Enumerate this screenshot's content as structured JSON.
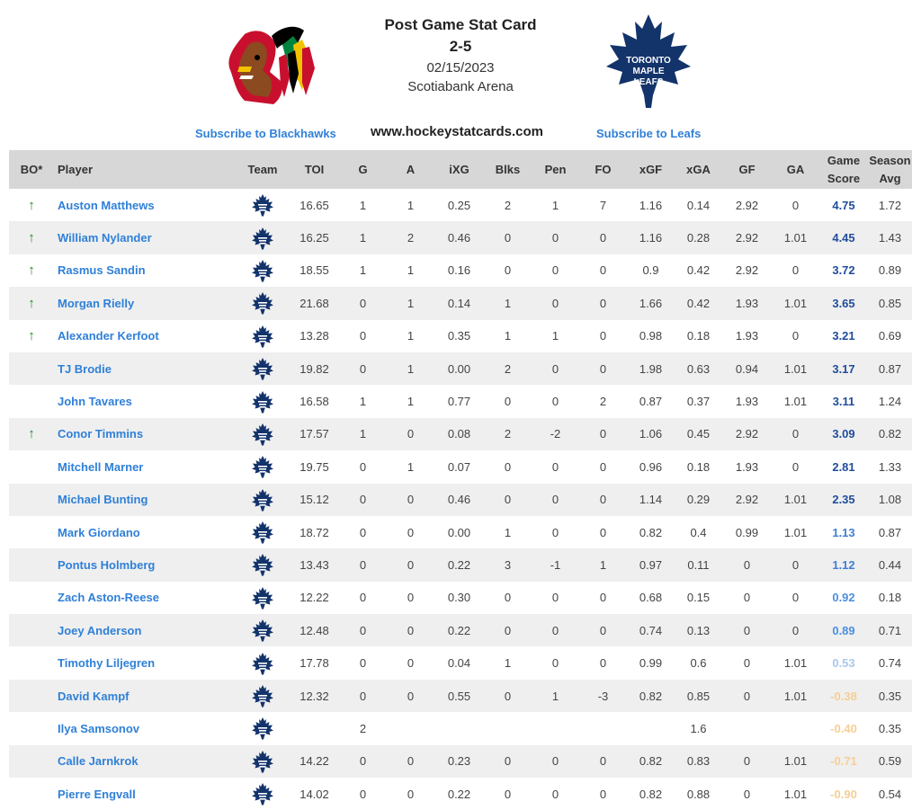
{
  "header": {
    "title": "Post Game Stat Card",
    "score": "2-5",
    "date": "02/15/2023",
    "arena": "Scotiabank Arena",
    "site": "www.hockeystatcards.com",
    "subscribe_home": "Subscribe to Blackhawks",
    "subscribe_away": "Subscribe to Leafs",
    "leafs_logo_text": [
      "TORONTO",
      "MAPLE",
      "LEAFS"
    ]
  },
  "columns": [
    "BO*",
    "Player",
    "Team",
    "TOI",
    "G",
    "A",
    "iXG",
    "Blks",
    "Pen",
    "FO",
    "xGF",
    "xGA",
    "GF",
    "GA",
    "Game Score",
    "Season Avg"
  ],
  "colors": {
    "header_bg": "#d7d7d7",
    "row_alt": "#efefef",
    "link": "#2f80d8",
    "arrow": "#1e8a1e",
    "leafs_blue": "#13336b"
  },
  "rows": [
    {
      "bo": "↑",
      "player": "Auston Matthews",
      "toi": "16.65",
      "g": "1",
      "a": "1",
      "ixg": "0.25",
      "blks": "2",
      "pen": "1",
      "fo": "7",
      "xgf": "1.16",
      "xga": "0.14",
      "gf": "2.92",
      "ga": "0",
      "gs": "4.75",
      "gs_color": "#1f4d9c",
      "avg": "1.72"
    },
    {
      "bo": "↑",
      "player": "William Nylander",
      "toi": "16.25",
      "g": "1",
      "a": "2",
      "ixg": "0.46",
      "blks": "0",
      "pen": "0",
      "fo": "0",
      "xgf": "1.16",
      "xga": "0.28",
      "gf": "2.92",
      "ga": "1.01",
      "gs": "4.45",
      "gs_color": "#1f4d9c",
      "avg": "1.43"
    },
    {
      "bo": "↑",
      "player": "Rasmus Sandin",
      "toi": "18.55",
      "g": "1",
      "a": "1",
      "ixg": "0.16",
      "blks": "0",
      "pen": "0",
      "fo": "0",
      "xgf": "0.9",
      "xga": "0.42",
      "gf": "2.92",
      "ga": "0",
      "gs": "3.72",
      "gs_color": "#1f4d9c",
      "avg": "0.89"
    },
    {
      "bo": "↑",
      "player": "Morgan Rielly",
      "toi": "21.68",
      "g": "0",
      "a": "1",
      "ixg": "0.14",
      "blks": "1",
      "pen": "0",
      "fo": "0",
      "xgf": "1.66",
      "xga": "0.42",
      "gf": "1.93",
      "ga": "1.01",
      "gs": "3.65",
      "gs_color": "#1f4d9c",
      "avg": "0.85"
    },
    {
      "bo": "↑",
      "player": "Alexander Kerfoot",
      "toi": "13.28",
      "g": "0",
      "a": "1",
      "ixg": "0.35",
      "blks": "1",
      "pen": "1",
      "fo": "0",
      "xgf": "0.98",
      "xga": "0.18",
      "gf": "1.93",
      "ga": "0",
      "gs": "3.21",
      "gs_color": "#1f4d9c",
      "avg": "0.69"
    },
    {
      "bo": "",
      "player": "TJ Brodie",
      "toi": "19.82",
      "g": "0",
      "a": "1",
      "ixg": "0.00",
      "blks": "2",
      "pen": "0",
      "fo": "0",
      "xgf": "1.98",
      "xga": "0.63",
      "gf": "0.94",
      "ga": "1.01",
      "gs": "3.17",
      "gs_color": "#1f4d9c",
      "avg": "0.87"
    },
    {
      "bo": "",
      "player": "John Tavares",
      "toi": "16.58",
      "g": "1",
      "a": "1",
      "ixg": "0.77",
      "blks": "0",
      "pen": "0",
      "fo": "2",
      "xgf": "0.87",
      "xga": "0.37",
      "gf": "1.93",
      "ga": "1.01",
      "gs": "3.11",
      "gs_color": "#1f4d9c",
      "avg": "1.24"
    },
    {
      "bo": "↑",
      "player": "Conor Timmins",
      "toi": "17.57",
      "g": "1",
      "a": "0",
      "ixg": "0.08",
      "blks": "2",
      "pen": "-2",
      "fo": "0",
      "xgf": "1.06",
      "xga": "0.45",
      "gf": "2.92",
      "ga": "0",
      "gs": "3.09",
      "gs_color": "#1f4d9c",
      "avg": "0.82"
    },
    {
      "bo": "",
      "player": "Mitchell Marner",
      "toi": "19.75",
      "g": "0",
      "a": "1",
      "ixg": "0.07",
      "blks": "0",
      "pen": "0",
      "fo": "0",
      "xgf": "0.96",
      "xga": "0.18",
      "gf": "1.93",
      "ga": "0",
      "gs": "2.81",
      "gs_color": "#1f4d9c",
      "avg": "1.33"
    },
    {
      "bo": "",
      "player": "Michael Bunting",
      "toi": "15.12",
      "g": "0",
      "a": "0",
      "ixg": "0.46",
      "blks": "0",
      "pen": "0",
      "fo": "0",
      "xgf": "1.14",
      "xga": "0.29",
      "gf": "2.92",
      "ga": "1.01",
      "gs": "2.35",
      "gs_color": "#1f4d9c",
      "avg": "1.08"
    },
    {
      "bo": "",
      "player": "Mark Giordano",
      "toi": "18.72",
      "g": "0",
      "a": "0",
      "ixg": "0.00",
      "blks": "1",
      "pen": "0",
      "fo": "0",
      "xgf": "0.82",
      "xga": "0.4",
      "gf": "0.99",
      "ga": "1.01",
      "gs": "1.13",
      "gs_color": "#3f7fd6",
      "avg": "0.87"
    },
    {
      "bo": "",
      "player": "Pontus Holmberg",
      "toi": "13.43",
      "g": "0",
      "a": "0",
      "ixg": "0.22",
      "blks": "3",
      "pen": "-1",
      "fo": "1",
      "xgf": "0.97",
      "xga": "0.11",
      "gf": "0",
      "ga": "0",
      "gs": "1.12",
      "gs_color": "#3f7fd6",
      "avg": "0.44"
    },
    {
      "bo": "",
      "player": "Zach Aston-Reese",
      "toi": "12.22",
      "g": "0",
      "a": "0",
      "ixg": "0.30",
      "blks": "0",
      "pen": "0",
      "fo": "0",
      "xgf": "0.68",
      "xga": "0.15",
      "gf": "0",
      "ga": "0",
      "gs": "0.92",
      "gs_color": "#4a8fe0",
      "avg": "0.18"
    },
    {
      "bo": "",
      "player": "Joey Anderson",
      "toi": "12.48",
      "g": "0",
      "a": "0",
      "ixg": "0.22",
      "blks": "0",
      "pen": "0",
      "fo": "0",
      "xgf": "0.74",
      "xga": "0.13",
      "gf": "0",
      "ga": "0",
      "gs": "0.89",
      "gs_color": "#4a8fe0",
      "avg": "0.71"
    },
    {
      "bo": "",
      "player": "Timothy Liljegren",
      "toi": "17.78",
      "g": "0",
      "a": "0",
      "ixg": "0.04",
      "blks": "1",
      "pen": "0",
      "fo": "0",
      "xgf": "0.99",
      "xga": "0.6",
      "gf": "0",
      "ga": "1.01",
      "gs": "0.53",
      "gs_color": "#a9c8ef",
      "avg": "0.74"
    },
    {
      "bo": "",
      "player": "David Kampf",
      "toi": "12.32",
      "g": "0",
      "a": "0",
      "ixg": "0.55",
      "blks": "0",
      "pen": "1",
      "fo": "-3",
      "xgf": "0.82",
      "xga": "0.85",
      "gf": "0",
      "ga": "1.01",
      "gs": "-0.38",
      "gs_color": "#f5cf94",
      "avg": "0.35"
    },
    {
      "bo": "",
      "player": "Ilya Samsonov",
      "toi": "",
      "g": "2",
      "a": "",
      "ixg": "",
      "blks": "",
      "pen": "",
      "fo": "",
      "xgf": "",
      "xga": "1.6",
      "gf": "",
      "ga": "",
      "gs": "-0.40",
      "gs_color": "#f5cf94",
      "avg": "0.35"
    },
    {
      "bo": "",
      "player": "Calle Jarnkrok",
      "toi": "14.22",
      "g": "0",
      "a": "0",
      "ixg": "0.23",
      "blks": "0",
      "pen": "0",
      "fo": "0",
      "xgf": "0.82",
      "xga": "0.83",
      "gf": "0",
      "ga": "1.01",
      "gs": "-0.71",
      "gs_color": "#f5cf94",
      "avg": "0.59"
    },
    {
      "bo": "",
      "player": "Pierre Engvall",
      "toi": "14.02",
      "g": "0",
      "a": "0",
      "ixg": "0.22",
      "blks": "0",
      "pen": "0",
      "fo": "0",
      "xgf": "0.82",
      "xga": "0.88",
      "gf": "0",
      "ga": "1.01",
      "gs": "-0.90",
      "gs_color": "#f5cf94",
      "avg": "0.54"
    }
  ]
}
